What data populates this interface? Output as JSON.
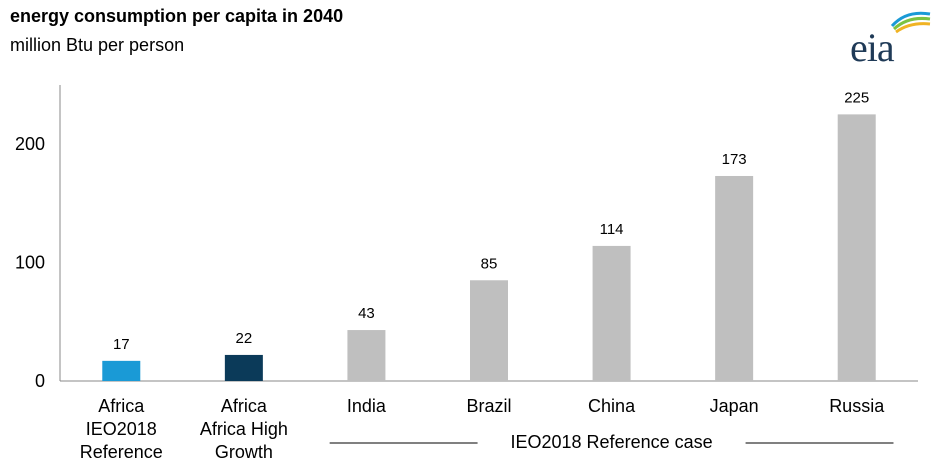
{
  "header": {
    "title": "energy consumption per capita in 2040",
    "subtitle": "million Btu per person",
    "logo_text": "eia"
  },
  "chart_data": {
    "type": "bar",
    "title": "energy consumption per capita in 2040",
    "ylabel": "million Btu per person",
    "ylim": [
      0,
      250
    ],
    "yticks": [
      0,
      100,
      200
    ],
    "grid": false,
    "categories": [
      [
        "Africa",
        "IEO2018",
        "Reference"
      ],
      [
        "Africa",
        "Africa High",
        "Growth"
      ],
      [
        "India"
      ],
      [
        "Brazil"
      ],
      [
        "China"
      ],
      [
        "Japan"
      ],
      [
        "Russia"
      ]
    ],
    "values": [
      17,
      22,
      43,
      85,
      114,
      173,
      225
    ],
    "bar_colors": [
      "#1a9ad6",
      "#0b3a59",
      "#bfbfbf",
      "#bfbfbf",
      "#bfbfbf",
      "#bfbfbf",
      "#bfbfbf"
    ],
    "group_label": "IEO2018 Reference case"
  }
}
